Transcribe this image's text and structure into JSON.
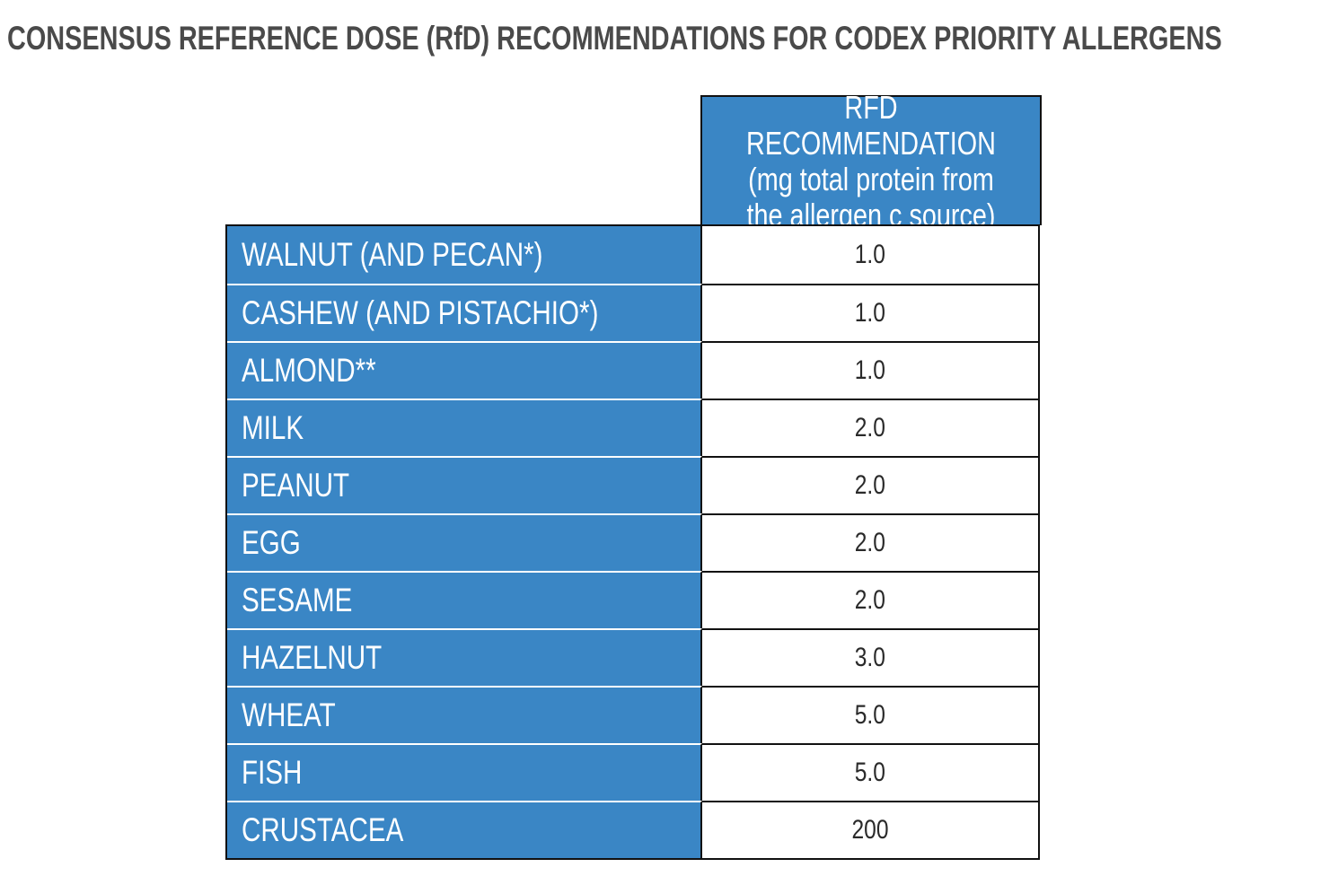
{
  "title": "CONSENSUS REFERENCE DOSE (RfD) RECOMMENDATIONS FOR CODEX PRIORITY ALLERGENS",
  "column_header": "RFD RECOMMENDATION\n(mg total protein from\nthe allergen c source)",
  "colors": {
    "header_blue": "#3a86c5",
    "title_gray": "#4a4a4a",
    "border": "#111111"
  },
  "rows": [
    {
      "allergen": "WALNUT (AND PECAN*)",
      "rfd": "1.0"
    },
    {
      "allergen": "CASHEW (AND PISTACHIO*)",
      "rfd": "1.0"
    },
    {
      "allergen": "ALMOND**",
      "rfd": "1.0"
    },
    {
      "allergen": "MILK",
      "rfd": "2.0"
    },
    {
      "allergen": "PEANUT",
      "rfd": "2.0"
    },
    {
      "allergen": "EGG",
      "rfd": "2.0"
    },
    {
      "allergen": "SESAME",
      "rfd": "2.0"
    },
    {
      "allergen": "HAZELNUT",
      "rfd": "3.0"
    },
    {
      "allergen": "WHEAT",
      "rfd": "5.0"
    },
    {
      "allergen": "FISH",
      "rfd": "5.0"
    },
    {
      "allergen": "CRUSTACEA",
      "rfd": "200"
    }
  ]
}
